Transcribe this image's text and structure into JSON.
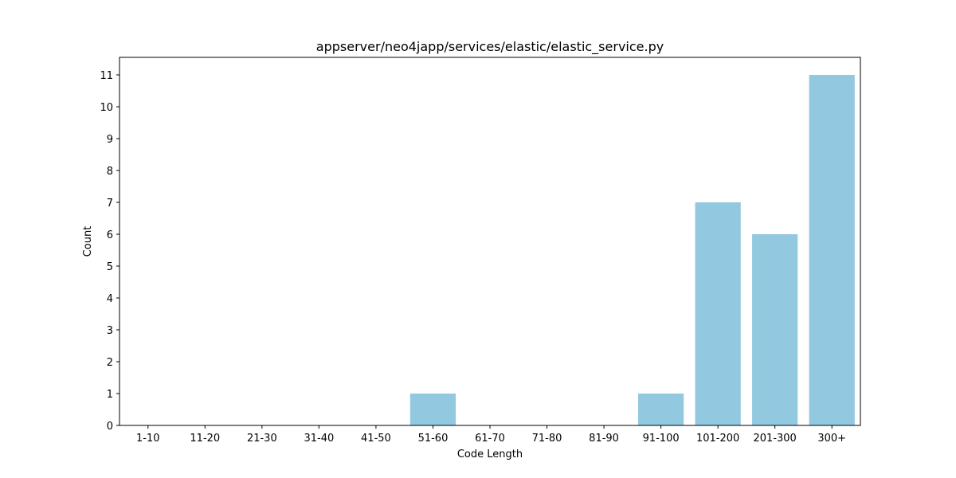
{
  "chart_data": {
    "type": "bar",
    "title": "appserver/neo4japp/services/elastic/elastic_service.py",
    "xlabel": "Code Length",
    "ylabel": "Count",
    "categories": [
      "1-10",
      "11-20",
      "21-30",
      "31-40",
      "41-50",
      "51-60",
      "61-70",
      "71-80",
      "81-90",
      "91-100",
      "101-200",
      "201-300",
      "300+"
    ],
    "values": [
      0,
      0,
      0,
      0,
      0,
      1,
      0,
      0,
      0,
      1,
      7,
      6,
      11
    ],
    "yticks": [
      "0",
      "1",
      "2",
      "3",
      "4",
      "5",
      "6",
      "7",
      "8",
      "9",
      "10",
      "11"
    ],
    "ylim": [
      0,
      11.55
    ],
    "bar_color": "#92c9e0",
    "grid": false,
    "legend": "none"
  }
}
